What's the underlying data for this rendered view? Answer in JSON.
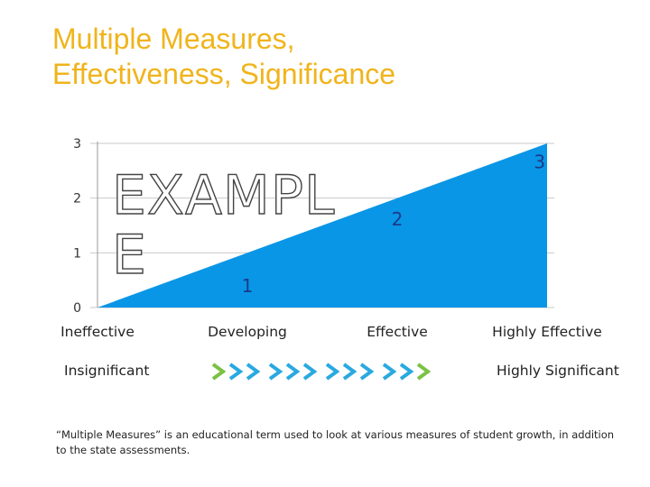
{
  "title": {
    "line1": "Multiple Measures,",
    "line2": "Effectiveness, Significance"
  },
  "watermark": "EXAMPLE",
  "significance_row": {
    "left_label": "Insignificant",
    "right_label": "Highly Significant",
    "arrow_colors": [
      "#7bc143",
      "#29a9e0",
      "#29a9e0",
      "#29a9e0",
      "#29a9e0",
      "#29a9e0",
      "#29a9e0",
      "#29a9e0",
      "#29a9e0",
      "#29a9e0",
      "#29a9e0",
      "#7bc143"
    ]
  },
  "footnote": "“Multiple Measures” is an educational term used to look at various measures of student growth, in addition to the state assessments.",
  "colors": {
    "title": "#f0b41c",
    "fill": "#0a96e6",
    "region_label": "#1a3a8a"
  },
  "chart_data": {
    "type": "area",
    "title": "",
    "xlabel": "",
    "ylabel": "",
    "categories": [
      "Ineffective",
      "Developing",
      "Effective",
      "Highly Effective"
    ],
    "y_ticks": [
      0,
      1,
      2,
      3
    ],
    "ylim": [
      0,
      3
    ],
    "series": [
      {
        "x": [
          0,
          3
        ],
        "values": [
          0,
          3
        ]
      }
    ],
    "region_labels": [
      {
        "text": "1",
        "x": 1.0,
        "y": 0.28
      },
      {
        "text": "2",
        "x": 2.0,
        "y": 1.5
      },
      {
        "text": "3",
        "x": 2.95,
        "y": 2.55
      }
    ],
    "grid": true,
    "legend": "none"
  }
}
